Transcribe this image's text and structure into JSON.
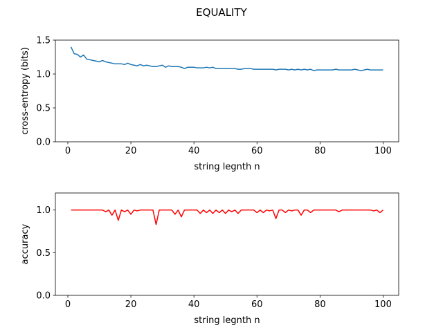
{
  "title": "EQUALITY",
  "chart_data": [
    {
      "type": "line",
      "xlabel": "string legnth n",
      "ylabel": "cross-entropy (bits)",
      "color": "#1f77b4",
      "x": [
        1,
        2,
        3,
        4,
        5,
        6,
        7,
        8,
        9,
        10,
        11,
        12,
        13,
        14,
        15,
        16,
        17,
        18,
        19,
        20,
        21,
        22,
        23,
        24,
        25,
        26,
        27,
        28,
        29,
        30,
        31,
        32,
        33,
        34,
        35,
        36,
        37,
        38,
        39,
        40,
        41,
        42,
        43,
        44,
        45,
        46,
        47,
        48,
        49,
        50,
        51,
        52,
        53,
        54,
        55,
        56,
        57,
        58,
        59,
        60,
        61,
        62,
        63,
        64,
        65,
        66,
        67,
        68,
        69,
        70,
        71,
        72,
        73,
        74,
        75,
        76,
        77,
        78,
        79,
        80,
        81,
        82,
        83,
        84,
        85,
        86,
        87,
        88,
        89,
        90,
        91,
        92,
        93,
        94,
        95,
        96,
        97,
        98,
        99,
        100
      ],
      "values": [
        1.4,
        1.3,
        1.29,
        1.25,
        1.28,
        1.22,
        1.21,
        1.2,
        1.19,
        1.18,
        1.2,
        1.18,
        1.17,
        1.16,
        1.15,
        1.15,
        1.15,
        1.14,
        1.16,
        1.14,
        1.13,
        1.12,
        1.14,
        1.12,
        1.13,
        1.12,
        1.11,
        1.11,
        1.12,
        1.13,
        1.1,
        1.12,
        1.11,
        1.11,
        1.11,
        1.1,
        1.08,
        1.1,
        1.1,
        1.1,
        1.09,
        1.09,
        1.09,
        1.1,
        1.09,
        1.1,
        1.08,
        1.08,
        1.08,
        1.08,
        1.08,
        1.08,
        1.08,
        1.07,
        1.07,
        1.08,
        1.08,
        1.08,
        1.07,
        1.07,
        1.07,
        1.07,
        1.07,
        1.07,
        1.07,
        1.06,
        1.07,
        1.07,
        1.07,
        1.06,
        1.07,
        1.06,
        1.07,
        1.06,
        1.07,
        1.06,
        1.07,
        1.05,
        1.06,
        1.06,
        1.06,
        1.06,
        1.06,
        1.06,
        1.07,
        1.06,
        1.06,
        1.06,
        1.06,
        1.06,
        1.07,
        1.06,
        1.05,
        1.06,
        1.07,
        1.06,
        1.06,
        1.06,
        1.06,
        1.06
      ],
      "xlim": [
        -3.95,
        104.95
      ],
      "xticks": [
        0,
        20,
        40,
        60,
        80,
        100
      ],
      "ylim": [
        0,
        1.5
      ],
      "yticks": [
        {
          "value": 0,
          "label": "0.0"
        },
        0.5,
        {
          "value": 1,
          "label": "1.0"
        },
        1.5
      ]
    },
    {
      "type": "line",
      "xlabel": "string legnth n",
      "ylabel": "accuracy",
      "color": "#ff0000",
      "x": [
        1,
        2,
        3,
        4,
        5,
        6,
        7,
        8,
        9,
        10,
        11,
        12,
        13,
        14,
        15,
        16,
        17,
        18,
        19,
        20,
        21,
        22,
        23,
        24,
        25,
        26,
        27,
        28,
        29,
        30,
        31,
        32,
        33,
        34,
        35,
        36,
        37,
        38,
        39,
        40,
        41,
        42,
        43,
        44,
        45,
        46,
        47,
        48,
        49,
        50,
        51,
        52,
        53,
        54,
        55,
        56,
        57,
        58,
        59,
        60,
        61,
        62,
        63,
        64,
        65,
        66,
        67,
        68,
        69,
        70,
        71,
        72,
        73,
        74,
        75,
        76,
        77,
        78,
        79,
        80,
        81,
        82,
        83,
        84,
        85,
        86,
        87,
        88,
        89,
        90,
        91,
        92,
        93,
        94,
        95,
        96,
        97,
        98,
        99,
        100
      ],
      "values": [
        1,
        1,
        1,
        1,
        1,
        1,
        1,
        1,
        1,
        1,
        1,
        0.98,
        1,
        0.94,
        1,
        0.88,
        1,
        0.98,
        1,
        0.95,
        1,
        0.99,
        1,
        1,
        1,
        1,
        1,
        0.83,
        1,
        1,
        1,
        1,
        1,
        0.95,
        1,
        0.92,
        1,
        1,
        1,
        1,
        1,
        0.96,
        1,
        0.97,
        1,
        0.96,
        1,
        0.97,
        1,
        0.96,
        1,
        0.98,
        1,
        0.96,
        1,
        1,
        1,
        1,
        1,
        0.97,
        1,
        0.97,
        1,
        0.99,
        1,
        0.9,
        1,
        1,
        0.97,
        1,
        0.99,
        1,
        1,
        0.94,
        1,
        1,
        0.97,
        1,
        1,
        1,
        1,
        1,
        1,
        1,
        1,
        0.98,
        1,
        1,
        1,
        1,
        1,
        1,
        1,
        1,
        1,
        1,
        0.99,
        1,
        0.97,
        1
      ],
      "xlim": [
        -3.95,
        104.95
      ],
      "xticks": [
        0,
        20,
        40,
        60,
        80,
        100
      ],
      "ylim": [
        0,
        1.2
      ],
      "yticks": [
        {
          "value": 0,
          "label": "0.0"
        },
        0.5,
        {
          "value": 1,
          "label": "1.0"
        }
      ]
    }
  ]
}
